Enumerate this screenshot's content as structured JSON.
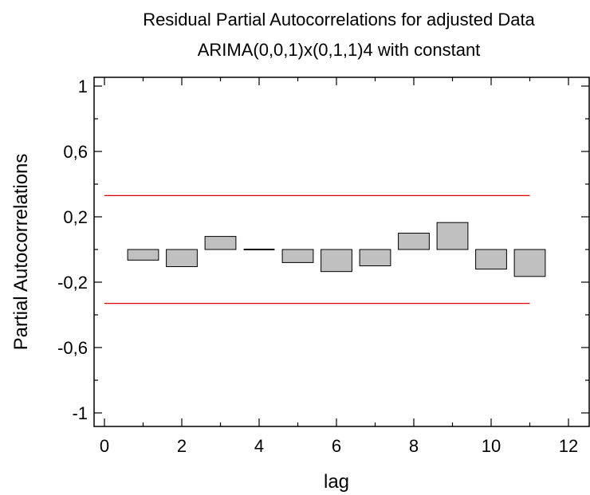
{
  "chart_data": {
    "type": "bar",
    "title": "Residual Partial Autocorrelations for adjusted Data",
    "subtitle": "ARIMA(0,0,1)x(0,1,1)4 with constant",
    "xlabel": "lag",
    "ylabel": "Partial Autocorrelations",
    "xlim": [
      0,
      12
    ],
    "ylim": [
      -1,
      1
    ],
    "x_ticks": [
      0,
      2,
      4,
      6,
      8,
      10,
      12
    ],
    "x_tick_labels": [
      "0",
      "2",
      "4",
      "6",
      "8",
      "10",
      "12"
    ],
    "y_ticks": [
      -1,
      -0.6,
      -0.2,
      0.2,
      0.6,
      1
    ],
    "y_tick_labels": [
      "-1",
      "-0,6",
      "-0,2",
      "0,2",
      "0,6",
      "1"
    ],
    "lags": [
      1,
      2,
      3,
      4,
      5,
      6,
      7,
      8,
      9,
      10,
      11
    ],
    "values": [
      -0.065,
      -0.105,
      0.08,
      0.0,
      -0.08,
      -0.135,
      -0.1,
      0.1,
      0.165,
      -0.12,
      -0.165
    ],
    "limits": {
      "upper": 0.33,
      "lower": -0.33,
      "x_range": [
        0,
        11
      ]
    },
    "colors": {
      "bar_fill": "#c0c0c0",
      "bar_stroke": "#000000",
      "limit_line": "#e00000"
    },
    "grid": false,
    "legend": "none"
  }
}
